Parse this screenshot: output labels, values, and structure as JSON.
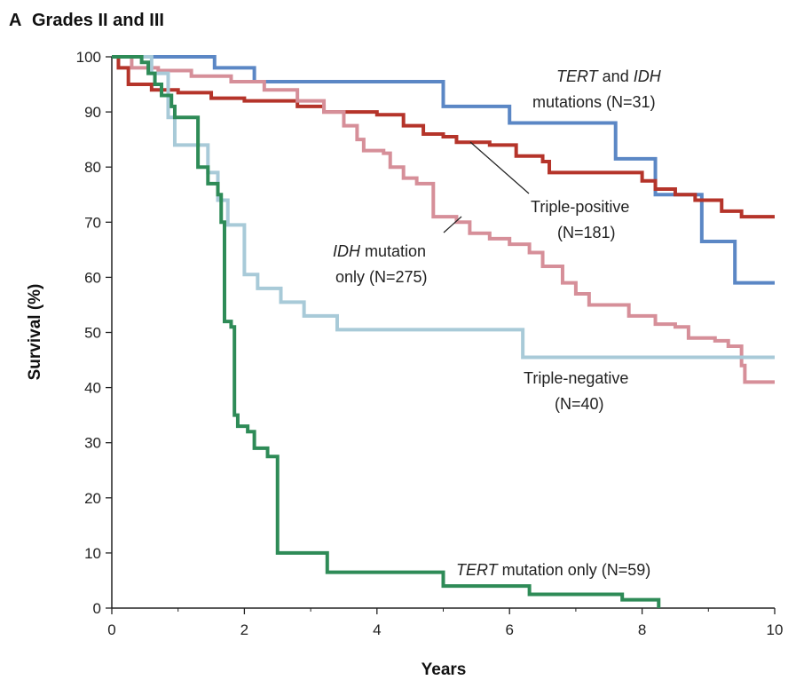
{
  "panel": {
    "letter": "A",
    "title": "Grades II and III"
  },
  "chart_data": {
    "type": "line",
    "step": true,
    "xlabel": "Years",
    "ylabel": "Survival (%)",
    "xlim": [
      0,
      10
    ],
    "ylim": [
      0,
      100
    ],
    "xticks": [
      0,
      2,
      4,
      6,
      8,
      10
    ],
    "yticks": [
      0,
      10,
      20,
      30,
      40,
      50,
      60,
      70,
      80,
      90,
      100
    ],
    "grid": false,
    "series": [
      {
        "name": "TERT and IDH mutations (N=31)",
        "color": "#5b87c5",
        "points": [
          [
            0,
            100
          ],
          [
            1.55,
            100
          ],
          [
            1.55,
            98
          ],
          [
            2.15,
            98
          ],
          [
            2.15,
            95.5
          ],
          [
            5,
            95.5
          ],
          [
            5,
            91
          ],
          [
            6,
            91
          ],
          [
            6,
            88
          ],
          [
            7.6,
            88
          ],
          [
            7.6,
            81.5
          ],
          [
            8.2,
            81.5
          ],
          [
            8.2,
            75
          ],
          [
            8.9,
            75
          ],
          [
            8.9,
            66.5
          ],
          [
            9.4,
            66.5
          ],
          [
            9.4,
            59
          ],
          [
            10,
            59
          ]
        ]
      },
      {
        "name": "Triple-positive (N=181)",
        "color": "#b5342a",
        "points": [
          [
            0,
            100
          ],
          [
            0.1,
            98
          ],
          [
            0.25,
            95
          ],
          [
            0.6,
            94
          ],
          [
            1,
            93.5
          ],
          [
            1.5,
            92.5
          ],
          [
            2,
            92
          ],
          [
            2.8,
            91
          ],
          [
            3.2,
            90
          ],
          [
            4,
            89.5
          ],
          [
            4.4,
            87.5
          ],
          [
            4.7,
            86
          ],
          [
            5,
            85.5
          ],
          [
            5.2,
            84.5
          ],
          [
            5.7,
            84
          ],
          [
            6.1,
            82
          ],
          [
            6.5,
            81
          ],
          [
            6.6,
            79
          ],
          [
            7.1,
            79
          ],
          [
            8,
            77.5
          ],
          [
            8.2,
            76
          ],
          [
            8.5,
            75
          ],
          [
            8.8,
            74
          ],
          [
            9.2,
            72
          ],
          [
            9.5,
            71
          ],
          [
            10,
            71
          ]
        ]
      },
      {
        "name": "IDH mutation only (N=275)",
        "color": "#d68f99",
        "points": [
          [
            0,
            100
          ],
          [
            0.3,
            98
          ],
          [
            0.7,
            97.5
          ],
          [
            1.2,
            96.5
          ],
          [
            1.8,
            95.5
          ],
          [
            2.3,
            94
          ],
          [
            2.8,
            92
          ],
          [
            3.2,
            90
          ],
          [
            3.5,
            87.5
          ],
          [
            3.7,
            85
          ],
          [
            3.8,
            83
          ],
          [
            4.1,
            82.5
          ],
          [
            4.2,
            80
          ],
          [
            4.4,
            78
          ],
          [
            4.6,
            77
          ],
          [
            4.8,
            77
          ],
          [
            4.85,
            71
          ],
          [
            5.2,
            70
          ],
          [
            5.4,
            68
          ],
          [
            5.7,
            67
          ],
          [
            6,
            66
          ],
          [
            6.3,
            64.5
          ],
          [
            6.5,
            62
          ],
          [
            6.8,
            59
          ],
          [
            7,
            57
          ],
          [
            7.2,
            55
          ],
          [
            7.5,
            55
          ],
          [
            7.8,
            53
          ],
          [
            8.2,
            51.5
          ],
          [
            8.5,
            51
          ],
          [
            8.7,
            49
          ],
          [
            9.1,
            48.5
          ],
          [
            9.3,
            47.5
          ],
          [
            9.5,
            44
          ],
          [
            9.55,
            41
          ],
          [
            10,
            41
          ]
        ]
      },
      {
        "name": "Triple-negative (N=40)",
        "color": "#a8cad8",
        "points": [
          [
            0,
            100
          ],
          [
            0.6,
            97
          ],
          [
            0.85,
            89
          ],
          [
            0.95,
            84
          ],
          [
            1.4,
            84
          ],
          [
            1.45,
            79
          ],
          [
            1.6,
            74
          ],
          [
            1.75,
            69.5
          ],
          [
            1.95,
            69.5
          ],
          [
            2,
            60.5
          ],
          [
            2.2,
            58
          ],
          [
            2.4,
            58
          ],
          [
            2.55,
            55.5
          ],
          [
            2.85,
            55.5
          ],
          [
            2.9,
            53
          ],
          [
            3.4,
            50.5
          ],
          [
            6.2,
            50.5
          ],
          [
            6.2,
            45.5
          ],
          [
            10,
            45.5
          ]
        ]
      },
      {
        "name": "TERT mutation only (N=59)",
        "color": "#2e8b57",
        "points": [
          [
            0,
            100
          ],
          [
            0.45,
            99
          ],
          [
            0.55,
            97
          ],
          [
            0.65,
            95
          ],
          [
            0.75,
            93
          ],
          [
            0.9,
            91
          ],
          [
            0.95,
            89
          ],
          [
            1.3,
            89
          ],
          [
            1.3,
            80
          ],
          [
            1.45,
            77
          ],
          [
            1.6,
            75
          ],
          [
            1.65,
            70
          ],
          [
            1.7,
            52
          ],
          [
            1.8,
            51
          ],
          [
            1.85,
            35
          ],
          [
            1.9,
            33
          ],
          [
            2.05,
            32
          ],
          [
            2.15,
            29
          ],
          [
            2.35,
            27.5
          ],
          [
            2.5,
            27.5
          ],
          [
            2.5,
            10
          ],
          [
            3.2,
            10
          ],
          [
            3.25,
            6.5
          ],
          [
            5,
            6.5
          ],
          [
            5,
            4
          ],
          [
            6.3,
            4
          ],
          [
            6.3,
            2.5
          ],
          [
            7.7,
            2.5
          ],
          [
            7.7,
            1.5
          ],
          [
            8.25,
            1.5
          ],
          [
            8.25,
            0
          ]
        ]
      }
    ],
    "annotations": [
      {
        "italic": "TERT",
        "mid": " and ",
        "italic2": "IDH",
        "line2": "mutations (N=31)"
      },
      {
        "line1": "Triple-positive",
        "line2": "(N=181)"
      },
      {
        "italic": "IDH",
        "line1rest": " mutation",
        "line2": "only (N=275)"
      },
      {
        "line1": "Triple-negative",
        "line2": "(N=40)"
      },
      {
        "italic": "TERT",
        "rest": " mutation only (N=59)"
      }
    ]
  }
}
